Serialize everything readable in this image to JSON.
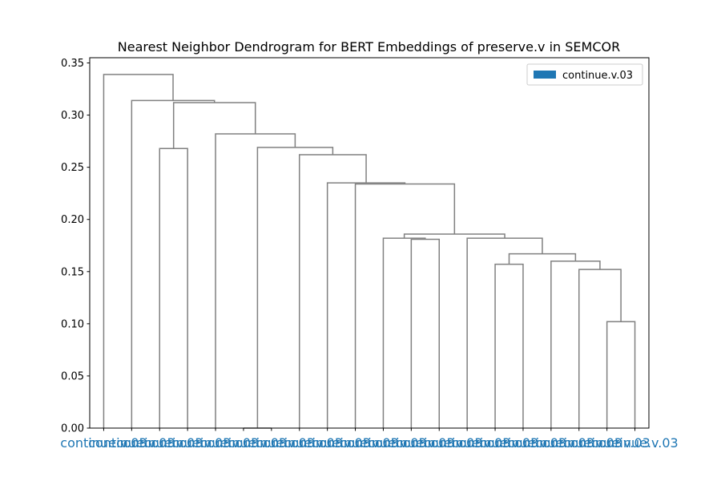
{
  "chart_data": {
    "type": "dendrogram",
    "title": "Nearest Neighbor Dendrogram for BERT Embeddings of preserve.v in SEMCOR",
    "xlabel": "",
    "ylabel": "",
    "ylim": [
      0,
      0.355
    ],
    "yticks": [
      "0.00",
      "0.05",
      "0.10",
      "0.15",
      "0.20",
      "0.25",
      "0.30",
      "0.35"
    ],
    "grid": false,
    "legend_position": "top-right",
    "legend": [
      {
        "label": "continue.v.03",
        "color": "#1f77b4"
      }
    ],
    "link_color": "#808080",
    "leaf_label_color": "#1f77b4",
    "leaves": [
      "continue.v.03",
      "continue.v.03",
      "continue.v.03",
      "continue.v.03",
      "continue.v.03",
      "continue.v.03",
      "continue.v.03",
      "continue.v.03",
      "continue.v.03",
      "continue.v.03",
      "continue.v.03",
      "continue.v.03",
      "continue.v.03",
      "continue.v.03",
      "continue.v.03",
      "continue.v.03",
      "continue.v.03",
      "continue.v.03",
      "continue.v.03",
      "continue.v.03"
    ],
    "merges": [
      {
        "left": 18,
        "right": 19,
        "height": 0.102
      },
      {
        "left": 17,
        "right": "m0",
        "height": 0.152
      },
      {
        "left": 16,
        "right": "m1",
        "height": 0.16
      },
      {
        "left": 14,
        "right": 15,
        "height": 0.157
      },
      {
        "left": "m3",
        "right": "m2",
        "height": 0.167
      },
      {
        "left": 13,
        "right": "m4",
        "height": 0.182
      },
      {
        "left": 11,
        "right": 12,
        "height": 0.181
      },
      {
        "left": 10,
        "right": "m6",
        "height": 0.182
      },
      {
        "left": "m7",
        "right": "m5",
        "height": 0.186
      },
      {
        "left": 9,
        "right": "m8",
        "height": 0.234
      },
      {
        "left": 8,
        "right": "m9",
        "height": 0.235
      },
      {
        "left": 7,
        "right": "m10",
        "height": 0.262
      },
      {
        "left": 5,
        "right": 6,
        "height": 0.0
      },
      {
        "left": "m12",
        "right": "m11",
        "height": 0.269
      },
      {
        "left": 4,
        "right": "m13",
        "height": 0.282
      },
      {
        "left": 2,
        "right": 3,
        "height": 0.268
      },
      {
        "left": "m15",
        "right": "m14",
        "height": 0.312
      },
      {
        "left": 1,
        "right": "m16",
        "height": 0.314
      },
      {
        "left": 0,
        "right": "m17",
        "height": 0.339
      }
    ]
  }
}
